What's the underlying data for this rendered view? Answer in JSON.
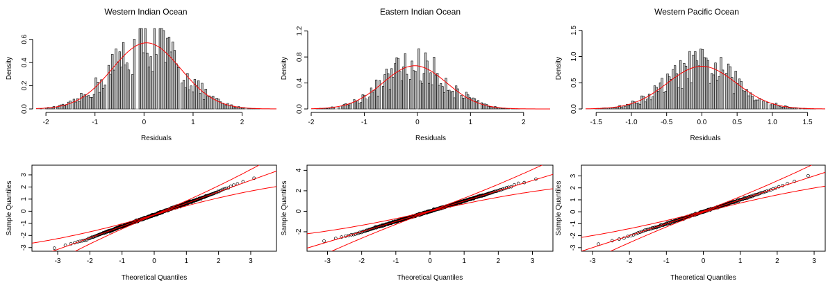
{
  "figure": {
    "labels": {
      "residuals": "Residuals",
      "density": "Density",
      "theoretical": "Theoretical Quantiles",
      "sample": "Sample Quantiles"
    },
    "colors": {
      "curve": "#ff0000",
      "bars": "#bdbdbd",
      "axis": "#000000",
      "points": "#000000"
    },
    "icon_names": [
      "histogram-panel",
      "qq-plot-panel"
    ]
  },
  "chart_data": [
    {
      "type": "bar",
      "chart_kind": "histogram",
      "title": "Western Indian Ocean",
      "xlabel": "Residuals",
      "ylabel": "Density",
      "xlim": [
        -2.2,
        2.7
      ],
      "ylim": [
        0,
        0.7
      ],
      "x_ticks": [
        -2,
        -1,
        0,
        1,
        2
      ],
      "y_ticks": [
        0.0,
        0.2,
        0.4,
        0.6
      ],
      "normal_curve": {
        "mean": 0.05,
        "sd": 0.7
      },
      "grid": false,
      "legend": "none"
    },
    {
      "type": "bar",
      "chart_kind": "histogram",
      "title": "Eastern Indian Ocean",
      "xlabel": "Residuals",
      "ylabel": "Density",
      "xlim": [
        -2.0,
        2.5
      ],
      "ylim": [
        0,
        1.25
      ],
      "x_ticks": [
        -2,
        -1,
        0,
        1,
        2
      ],
      "y_ticks": [
        0.0,
        0.4,
        0.8,
        1.2
      ],
      "normal_curve": {
        "mean": -0.05,
        "sd": 0.6
      },
      "grid": false,
      "legend": "none"
    },
    {
      "type": "bar",
      "chart_kind": "histogram",
      "title": "Western Pacific Ocean",
      "xlabel": "Residuals",
      "ylabel": "Density",
      "xlim": [
        -1.65,
        1.75
      ],
      "ylim": [
        0,
        1.55
      ],
      "x_ticks": [
        -1.5,
        -1.0,
        -0.5,
        0.0,
        0.5,
        1.0,
        1.5
      ],
      "x_tick_labels": [
        "-1.5",
        "-1.0",
        "-0.5",
        "0.0",
        "0.5",
        "1.0",
        "1.5"
      ],
      "y_ticks": [
        0.0,
        0.5,
        1.0,
        1.5
      ],
      "normal_curve": {
        "mean": 0.0,
        "sd": 0.49
      },
      "grid": false,
      "legend": "none"
    },
    {
      "type": "scatter",
      "chart_kind": "qq-plot",
      "xlabel": "Theoretical Quantiles",
      "ylabel": "Sample Quantiles",
      "xlim": [
        -3.8,
        3.8
      ],
      "ylim": [
        -3.3,
        3.8
      ],
      "x_ticks": [
        -3,
        -2,
        -1,
        0,
        1,
        2,
        3
      ],
      "y_ticks": [
        -3,
        -2,
        -1,
        0,
        1,
        2,
        3
      ],
      "n_points": 520,
      "reference_line": {
        "intercept": -0.3,
        "slope": 0.95
      },
      "band_halfwidth": {
        "at_zero": 0.02,
        "slope_per_unit": 0.14
      },
      "grid": false,
      "legend": "none"
    },
    {
      "type": "scatter",
      "chart_kind": "qq-plot",
      "xlabel": "Theoretical Quantiles",
      "ylabel": "Sample Quantiles",
      "xlim": [
        -3.6,
        3.6
      ],
      "ylim": [
        -3.9,
        4.5
      ],
      "x_ticks": [
        -3,
        -2,
        -1,
        0,
        1,
        2,
        3
      ],
      "y_ticks": [
        -2,
        0,
        2,
        4
      ],
      "n_points": 520,
      "reference_line": {
        "intercept": 0.0,
        "slope": 1.0
      },
      "band_halfwidth": {
        "at_zero": 0.03,
        "slope_per_unit": 0.2
      },
      "grid": false,
      "legend": "none"
    },
    {
      "type": "scatter",
      "chart_kind": "qq-plot",
      "xlabel": "Theoretical Quantiles",
      "ylabel": "Sample Quantiles",
      "xlim": [
        -3.3,
        3.3
      ],
      "ylim": [
        -3.3,
        3.9
      ],
      "x_ticks": [
        -3,
        -2,
        -1,
        0,
        1,
        2,
        3
      ],
      "y_ticks": [
        -3,
        -2,
        -1,
        0,
        1,
        2,
        3
      ],
      "n_points": 220,
      "reference_line": {
        "intercept": 0.0,
        "slope": 1.0
      },
      "band_halfwidth": {
        "at_zero": 0.05,
        "slope_per_unit": 0.17
      },
      "grid": false,
      "legend": "none"
    }
  ]
}
